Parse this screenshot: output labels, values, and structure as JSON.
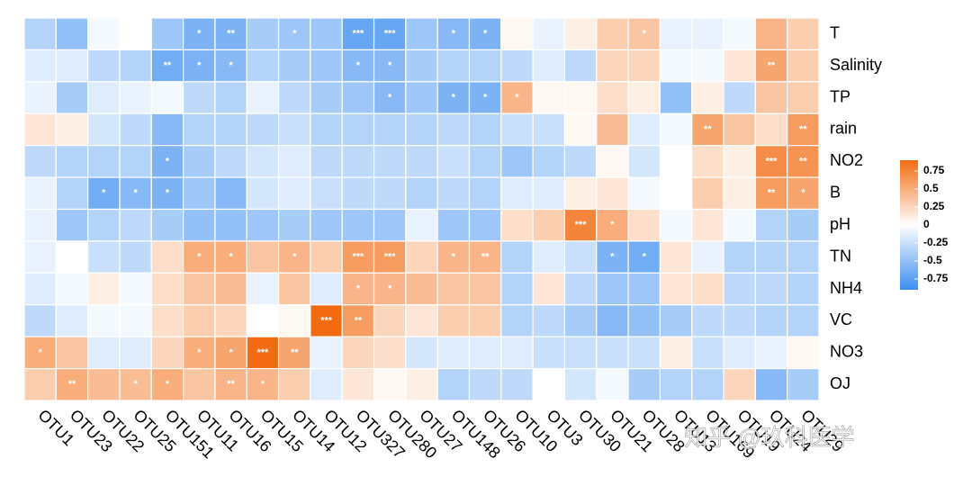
{
  "chart_data": {
    "type": "heatmap",
    "columns": [
      "OTU1",
      "OTU23",
      "OTU22",
      "OTU25",
      "OTU151",
      "OTU11",
      "OTU16",
      "OTU15",
      "OTU14",
      "OTU12",
      "OTU327",
      "OTU280",
      "OTU27",
      "OTU148",
      "OTU26",
      "OTU10",
      "OTU3",
      "OTU30",
      "OTU21",
      "OTU28",
      "OTU13",
      "OTU169",
      "OTU19",
      "OTU24",
      "OTU29"
    ],
    "rows": [
      "T",
      "Salinity",
      "TP",
      "rain",
      "NO2",
      "B",
      "pH",
      "TN",
      "NH4",
      "VC",
      "NO3",
      "OJ"
    ],
    "values": [
      [
        -0.35,
        -0.5,
        -0.05,
        0,
        -0.45,
        -0.6,
        -0.6,
        -0.4,
        -0.45,
        -0.45,
        -0.7,
        -0.7,
        -0.45,
        -0.55,
        -0.6,
        0.05,
        -0.1,
        0.1,
        0.3,
        0.35,
        -0.1,
        -0.1,
        -0.05,
        0.45,
        0.3
      ],
      [
        -0.15,
        -0.15,
        -0.3,
        -0.35,
        -0.65,
        -0.6,
        -0.55,
        -0.35,
        -0.4,
        -0.45,
        -0.55,
        -0.55,
        -0.4,
        -0.35,
        -0.35,
        -0.3,
        -0.15,
        -0.3,
        0.25,
        0.25,
        -0.05,
        -0.05,
        0.15,
        0.55,
        0.3
      ],
      [
        -0.1,
        -0.4,
        -0.15,
        -0.1,
        -0.05,
        -0.3,
        -0.35,
        -0.1,
        -0.3,
        -0.4,
        -0.45,
        -0.55,
        -0.45,
        -0.6,
        -0.6,
        0.45,
        0.05,
        0.05,
        0.2,
        0.1,
        -0.5,
        0.1,
        -0.3,
        0.35,
        0.3
      ],
      [
        0.15,
        0.1,
        -0.2,
        -0.3,
        -0.55,
        -0.35,
        -0.35,
        -0.3,
        -0.25,
        -0.35,
        -0.35,
        -0.35,
        -0.35,
        -0.3,
        -0.35,
        -0.25,
        -0.25,
        0.05,
        0.4,
        -0.15,
        -0.05,
        0.55,
        0.35,
        0.2,
        0.6
      ],
      [
        -0.3,
        -0.35,
        -0.35,
        -0.35,
        -0.6,
        -0.4,
        -0.3,
        -0.2,
        -0.15,
        -0.3,
        -0.3,
        -0.3,
        -0.3,
        -0.25,
        -0.35,
        -0.45,
        -0.35,
        -0.3,
        0.05,
        -0.2,
        0,
        0.2,
        0.1,
        0.7,
        0.65
      ],
      [
        -0.1,
        -0.35,
        -0.65,
        -0.55,
        -0.6,
        -0.45,
        -0.55,
        -0.2,
        -0.15,
        -0.25,
        -0.3,
        -0.3,
        -0.35,
        -0.3,
        -0.35,
        -0.15,
        -0.15,
        0.1,
        0.15,
        -0.05,
        0,
        0.3,
        0.1,
        0.6,
        0.55
      ],
      [
        -0.1,
        -0.45,
        -0.35,
        -0.3,
        -0.4,
        -0.5,
        -0.5,
        -0.45,
        -0.4,
        -0.45,
        -0.45,
        -0.45,
        -0.1,
        -0.45,
        -0.45,
        0.2,
        0.3,
        0.75,
        0.5,
        0.2,
        -0.05,
        0.15,
        -0.05,
        -0.35,
        -0.4
      ],
      [
        -0.1,
        0,
        -0.25,
        -0.3,
        0.2,
        0.5,
        0.5,
        0.35,
        0.45,
        0.3,
        0.6,
        0.6,
        0.25,
        0.45,
        0.45,
        -0.35,
        -0.15,
        -0.25,
        -0.6,
        -0.65,
        0.15,
        -0.1,
        -0.35,
        -0.35,
        -0.35
      ],
      [
        -0.15,
        -0.05,
        0.1,
        -0.05,
        0.2,
        0.35,
        0.4,
        -0.1,
        0.35,
        -0.15,
        0.45,
        0.45,
        0.4,
        0.35,
        0.35,
        -0.35,
        0.15,
        -0.3,
        -0.45,
        -0.45,
        0.15,
        0.2,
        -0.3,
        -0.3,
        -0.35
      ],
      [
        -0.3,
        -0.15,
        -0.05,
        -0.05,
        0.2,
        0.3,
        0.25,
        0,
        0.05,
        0.9,
        0.6,
        0.25,
        0.15,
        0.3,
        0.3,
        -0.35,
        -0.3,
        -0.4,
        -0.55,
        -0.5,
        -0.4,
        -0.3,
        -0.3,
        -0.35,
        -0.35
      ],
      [
        0.5,
        0.35,
        -0.15,
        -0.15,
        0.25,
        0.5,
        0.55,
        0.9,
        0.55,
        -0.1,
        0.25,
        0.2,
        -0.2,
        -0.15,
        -0.15,
        -0.15,
        -0.25,
        -0.25,
        -0.25,
        -0.25,
        0.1,
        -0.25,
        -0.15,
        -0.1,
        0.05
      ],
      [
        0.3,
        0.5,
        0.4,
        0.4,
        0.5,
        0.35,
        0.45,
        0.45,
        0.3,
        -0.15,
        0.15,
        0.05,
        0.1,
        -0.35,
        -0.3,
        -0.3,
        0,
        -0.2,
        -0.05,
        -0.4,
        -0.35,
        -0.35,
        0.25,
        -0.55,
        -0.4
      ]
    ],
    "value_labels": [
      [
        null,
        null,
        null,
        null,
        null,
        "*",
        "**",
        null,
        "*",
        null,
        "***",
        "***",
        null,
        "*",
        "*",
        null,
        null,
        null,
        null,
        "*",
        null,
        null,
        null,
        null,
        null
      ],
      [
        null,
        null,
        null,
        null,
        "**",
        "*",
        "*",
        null,
        null,
        null,
        "*",
        "*",
        null,
        null,
        null,
        null,
        null,
        null,
        null,
        null,
        null,
        null,
        null,
        "**",
        null
      ],
      [
        null,
        null,
        null,
        null,
        null,
        null,
        null,
        null,
        null,
        null,
        null,
        "*",
        null,
        "*",
        "*",
        "*",
        null,
        null,
        null,
        null,
        null,
        null,
        null,
        null,
        null
      ],
      [
        null,
        null,
        null,
        null,
        null,
        null,
        null,
        null,
        null,
        null,
        null,
        null,
        null,
        null,
        null,
        null,
        null,
        null,
        null,
        null,
        null,
        "**",
        null,
        null,
        "**"
      ],
      [
        null,
        null,
        null,
        null,
        "*",
        null,
        null,
        null,
        null,
        null,
        null,
        null,
        null,
        null,
        null,
        null,
        null,
        null,
        null,
        null,
        null,
        null,
        null,
        "***",
        "**"
      ],
      [
        null,
        null,
        "*",
        "*",
        "*",
        null,
        null,
        null,
        null,
        null,
        null,
        null,
        null,
        null,
        null,
        null,
        null,
        null,
        null,
        null,
        null,
        null,
        null,
        "**",
        "*"
      ],
      [
        null,
        null,
        null,
        null,
        null,
        null,
        null,
        null,
        null,
        null,
        null,
        null,
        null,
        null,
        null,
        null,
        null,
        "***",
        "*",
        null,
        null,
        null,
        null,
        null,
        null
      ],
      [
        null,
        null,
        null,
        null,
        null,
        "*",
        "*",
        null,
        "*",
        null,
        "***",
        "***",
        null,
        "*",
        "**",
        null,
        null,
        null,
        "*",
        "*",
        null,
        null,
        null,
        null,
        null
      ],
      [
        null,
        null,
        null,
        null,
        null,
        null,
        null,
        null,
        null,
        null,
        "*",
        "*",
        null,
        null,
        null,
        null,
        null,
        null,
        null,
        null,
        null,
        null,
        null,
        null,
        null
      ],
      [
        null,
        null,
        null,
        null,
        null,
        null,
        null,
        null,
        null,
        "***",
        "**",
        null,
        null,
        null,
        null,
        null,
        null,
        null,
        null,
        null,
        null,
        null,
        null,
        null,
        null
      ],
      [
        "*",
        null,
        null,
        null,
        null,
        "*",
        "*",
        "***",
        "**",
        null,
        null,
        null,
        null,
        null,
        null,
        null,
        null,
        null,
        null,
        null,
        null,
        null,
        null,
        null,
        null
      ],
      [
        null,
        "**",
        null,
        "*",
        "*",
        null,
        "**",
        "*",
        null,
        null,
        null,
        null,
        null,
        null,
        null,
        null,
        null,
        null,
        null,
        null,
        null,
        null,
        null,
        null,
        null
      ]
    ],
    "colors": {
      "negative": "#3c8df0",
      "zero": "#ffffff",
      "positive": "#f26b12"
    },
    "clim": [
      -0.9,
      0.9
    ],
    "colorbar_ticks": [
      0.75,
      0.5,
      0.25,
      0,
      -0.25,
      -0.5,
      -0.75
    ],
    "watermark": "知乎 @玖科医学"
  }
}
